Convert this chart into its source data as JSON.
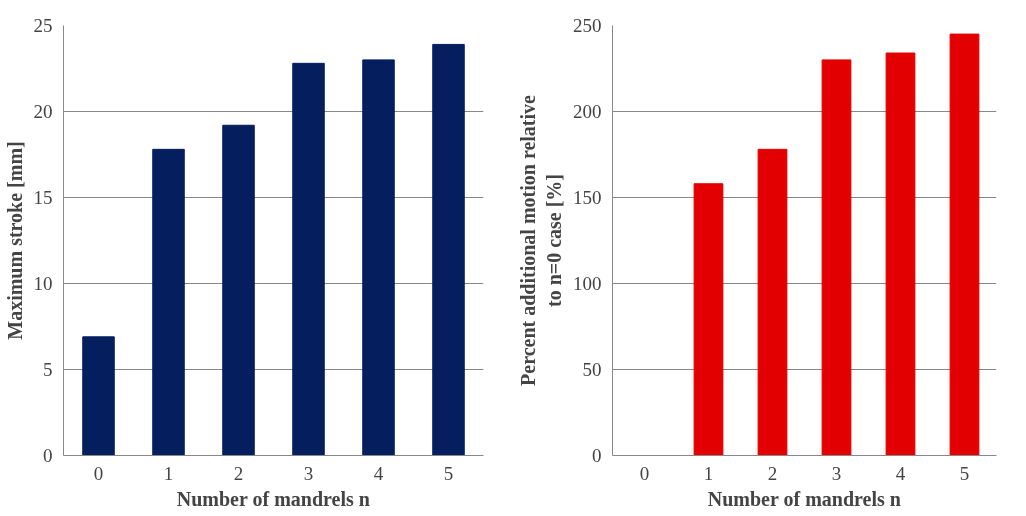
{
  "chart_data": [
    {
      "type": "bar",
      "xlabel": "Number of mandrels n",
      "ylabel": "Maximum stroke [mm]",
      "categories": [
        "0",
        "1",
        "2",
        "3",
        "4",
        "5"
      ],
      "values": [
        6.9,
        17.8,
        19.2,
        22.8,
        23.0,
        23.9
      ],
      "color": "#041e5e",
      "ylim": [
        0,
        25
      ],
      "yticks": [
        0,
        5,
        10,
        15,
        20,
        25
      ],
      "grid": "y"
    },
    {
      "type": "bar",
      "xlabel": "Number of mandrels n",
      "ylabel": "Percent additional motion relative\nto n=0 case [%]",
      "categories": [
        "0",
        "1",
        "2",
        "3",
        "4",
        "5"
      ],
      "values": [
        0,
        158,
        178,
        230,
        234,
        245
      ],
      "color": "#e30000",
      "ylim": [
        0,
        250
      ],
      "yticks": [
        0,
        50,
        100,
        150,
        200,
        250
      ],
      "grid": "y"
    }
  ]
}
